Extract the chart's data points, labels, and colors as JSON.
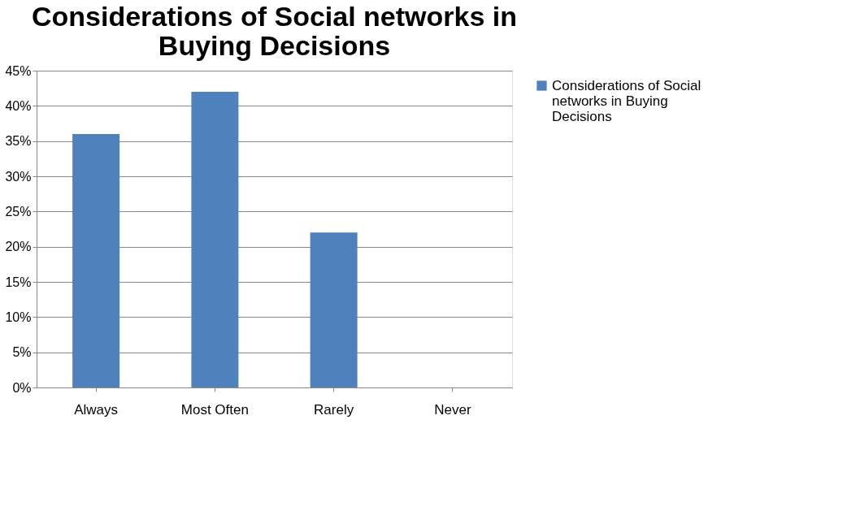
{
  "chart_data": {
    "type": "bar",
    "title": "Considerations of Social networks in Buying Decisions",
    "categories": [
      "Always",
      "Most Often",
      "Rarely",
      "Never"
    ],
    "series": [
      {
        "name": "Considerations of Social networks in Buying Decisions",
        "color": "#4f81bd",
        "values": [
          36,
          42,
          22,
          0
        ]
      }
    ],
    "ylim": [
      0,
      45
    ],
    "yticks": [
      {
        "value": 0,
        "label": "0%"
      },
      {
        "value": 5,
        "label": "5%"
      },
      {
        "value": 10,
        "label": "10%"
      },
      {
        "value": 15,
        "label": "15%"
      },
      {
        "value": 20,
        "label": "20%"
      },
      {
        "value": 25,
        "label": "25%"
      },
      {
        "value": 30,
        "label": "30%"
      },
      {
        "value": 35,
        "label": "35%"
      },
      {
        "value": 40,
        "label": "40%"
      },
      {
        "value": 45,
        "label": "45%"
      }
    ],
    "grid": "y",
    "legend": "right"
  }
}
